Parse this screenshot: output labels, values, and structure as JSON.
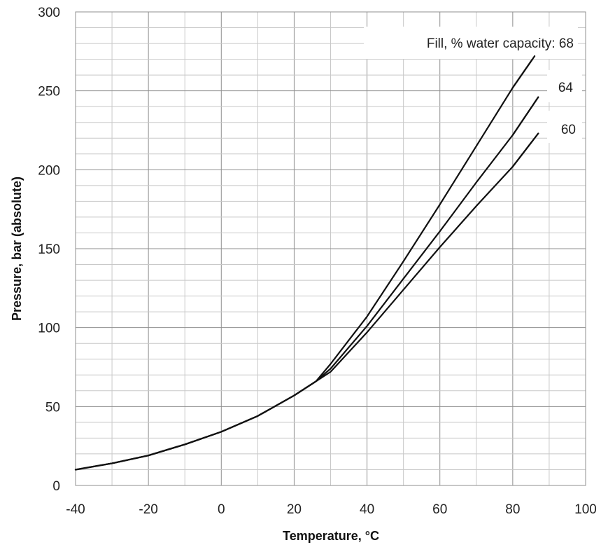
{
  "chart_data": {
    "type": "line",
    "title": "",
    "xlabel": "Temperature, °C",
    "ylabel": "Pressure, bar (absolute)",
    "xlim": [
      -40,
      100
    ],
    "ylim": [
      0,
      300
    ],
    "x_ticks": [
      -40,
      -20,
      0,
      20,
      40,
      60,
      80,
      100
    ],
    "y_ticks": [
      0,
      50,
      100,
      150,
      200,
      250,
      300
    ],
    "grid": true,
    "legend": "none",
    "series": [
      {
        "name": "68",
        "label": "Fill, % water capacity: 68",
        "x": [
          -40,
          -30,
          -20,
          -10,
          0,
          10,
          20,
          26,
          30,
          40,
          50,
          60,
          70,
          80,
          86
        ],
        "y": [
          10,
          14,
          19,
          26,
          34,
          44,
          57,
          66,
          77,
          107,
          142,
          178,
          215,
          252,
          272
        ]
      },
      {
        "name": "64",
        "label": "64",
        "x": [
          -40,
          -30,
          -20,
          -10,
          0,
          10,
          20,
          26,
          30,
          40,
          50,
          60,
          70,
          80,
          87
        ],
        "y": [
          10,
          14,
          19,
          26,
          34,
          44,
          57,
          66,
          74,
          101,
          131,
          161,
          192,
          222,
          246
        ]
      },
      {
        "name": "60",
        "label": "60",
        "x": [
          -40,
          -30,
          -20,
          -10,
          0,
          10,
          20,
          26,
          30,
          40,
          50,
          60,
          70,
          80,
          87
        ],
        "y": [
          10,
          14,
          19,
          26,
          34,
          44,
          57,
          66,
          72,
          97,
          124,
          151,
          177,
          202,
          223
        ]
      }
    ]
  }
}
